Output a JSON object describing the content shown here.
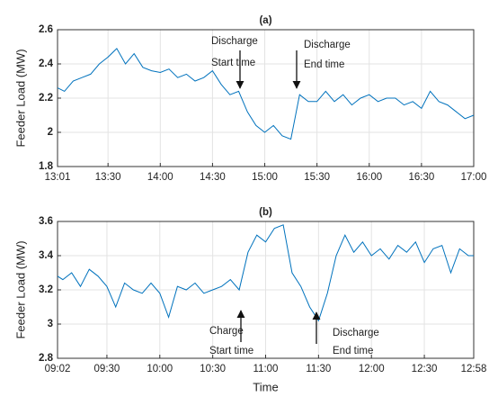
{
  "chart_data": [
    {
      "type": "line",
      "title": "(a)",
      "y_label": "Feeder Load (MW)",
      "color": "#0072bd",
      "grid": true,
      "x": [
        "13:01",
        "13:05",
        "13:10",
        "13:15",
        "13:20",
        "13:25",
        "13:30",
        "13:35",
        "13:40",
        "13:45",
        "13:50",
        "13:55",
        "14:00",
        "14:05",
        "14:10",
        "14:15",
        "14:20",
        "14:25",
        "14:30",
        "14:35",
        "14:40",
        "14:45",
        "14:50",
        "14:55",
        "15:00",
        "15:05",
        "15:10",
        "15:15",
        "15:20",
        "15:25",
        "15:30",
        "15:35",
        "15:40",
        "15:45",
        "15:50",
        "15:55",
        "16:00",
        "16:05",
        "16:10",
        "16:15",
        "16:20",
        "16:25",
        "16:30",
        "16:35",
        "16:40",
        "16:45",
        "16:50",
        "16:55",
        "17:00"
      ],
      "values": [
        2.26,
        2.24,
        2.3,
        2.32,
        2.34,
        2.4,
        2.44,
        2.49,
        2.4,
        2.46,
        2.38,
        2.36,
        2.35,
        2.37,
        2.32,
        2.34,
        2.3,
        2.32,
        2.36,
        2.28,
        2.22,
        2.24,
        2.12,
        2.04,
        2.0,
        2.04,
        1.98,
        1.96,
        2.22,
        2.18,
        2.18,
        2.24,
        2.18,
        2.22,
        2.16,
        2.2,
        2.22,
        2.18,
        2.2,
        2.2,
        2.16,
        2.18,
        2.14,
        2.24,
        2.18,
        2.16,
        2.12,
        2.08,
        2.1
      ],
      "xlim": [
        "13:01",
        "17:00"
      ],
      "xticks": [
        "13:01",
        "13:30",
        "14:00",
        "14:30",
        "15:00",
        "15:30",
        "16:00",
        "16:30",
        "17:00"
      ],
      "ylim": [
        1.8,
        2.6
      ],
      "yticks": [
        1.8,
        2,
        2.2,
        2.4,
        2.6
      ],
      "annotations": [
        {
          "lines": [
            "Discharge",
            "Start time"
          ]
        },
        {
          "lines": [
            "Discharge",
            "End time"
          ]
        }
      ]
    },
    {
      "type": "line",
      "title": "(b)",
      "y_label": "Feeder Load (MW)",
      "x_label": "Time",
      "color": "#0072bd",
      "grid": true,
      "x": [
        "09:02",
        "09:05",
        "09:10",
        "09:15",
        "09:20",
        "09:25",
        "09:30",
        "09:35",
        "09:40",
        "09:45",
        "09:50",
        "09:55",
        "10:00",
        "10:05",
        "10:10",
        "10:15",
        "10:20",
        "10:25",
        "10:30",
        "10:35",
        "10:40",
        "10:45",
        "10:50",
        "10:55",
        "11:00",
        "11:05",
        "11:10",
        "11:15",
        "11:20",
        "11:25",
        "11:30",
        "11:35",
        "11:40",
        "11:45",
        "11:50",
        "11:55",
        "12:00",
        "12:05",
        "12:10",
        "12:15",
        "12:20",
        "12:25",
        "12:30",
        "12:35",
        "12:40",
        "12:45",
        "12:50",
        "12:55",
        "12:58"
      ],
      "values": [
        3.28,
        3.26,
        3.3,
        3.22,
        3.32,
        3.28,
        3.22,
        3.1,
        3.24,
        3.2,
        3.18,
        3.24,
        3.18,
        3.04,
        3.22,
        3.2,
        3.24,
        3.18,
        3.2,
        3.22,
        3.26,
        3.2,
        3.42,
        3.52,
        3.48,
        3.56,
        3.58,
        3.3,
        3.22,
        3.1,
        3.02,
        3.18,
        3.4,
        3.52,
        3.42,
        3.48,
        3.4,
        3.44,
        3.38,
        3.46,
        3.42,
        3.48,
        3.36,
        3.44,
        3.46,
        3.3,
        3.44,
        3.4,
        3.4
      ],
      "xlim": [
        "09:02",
        "12:58"
      ],
      "xticks": [
        "09:02",
        "09:30",
        "10:00",
        "10:30",
        "11:00",
        "11:30",
        "12:00",
        "12:30",
        "12:58"
      ],
      "ylim": [
        2.8,
        3.6
      ],
      "yticks": [
        2.8,
        3,
        3.2,
        3.4,
        3.6
      ],
      "annotations": [
        {
          "lines": [
            "Charge",
            "Start time"
          ]
        },
        {
          "lines": [
            "Discharge",
            "End time"
          ]
        }
      ]
    }
  ]
}
